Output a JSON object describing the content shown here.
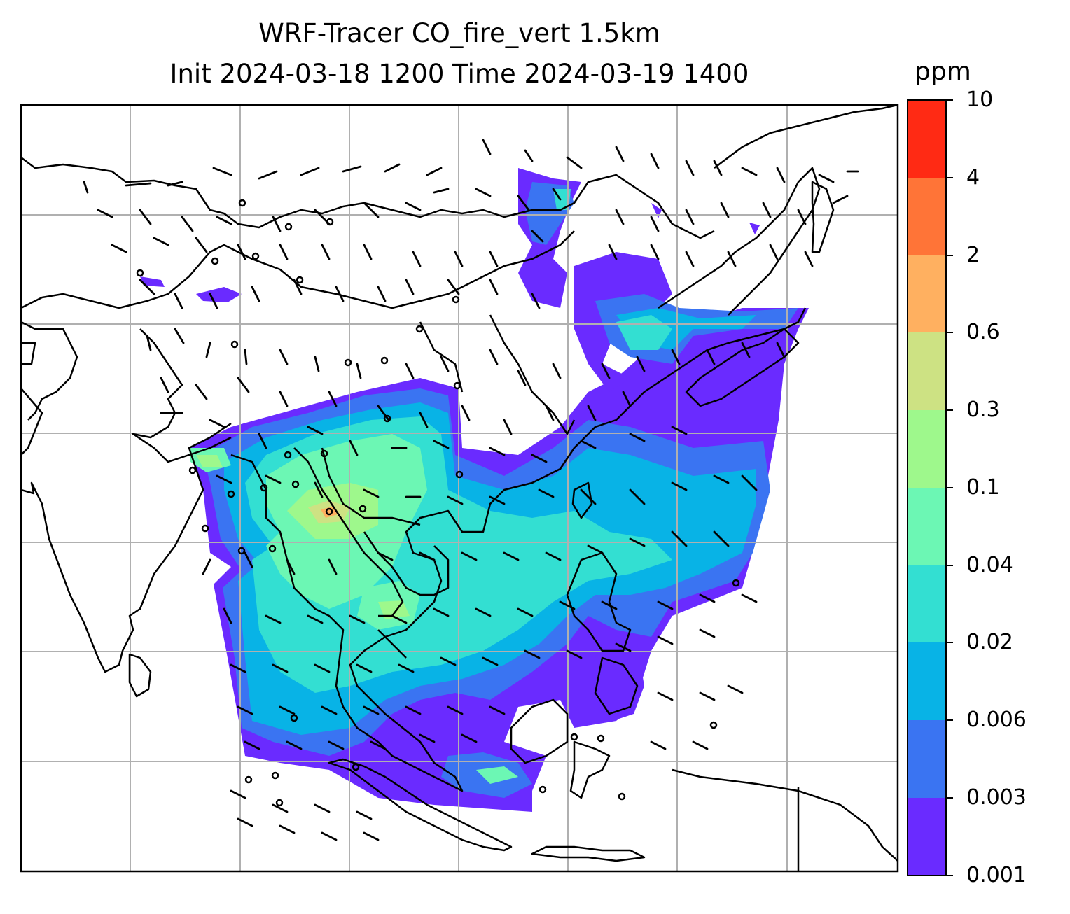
{
  "title": {
    "line1": "WRF-Tracer CO_fire_vert 1.5km",
    "line2": "Init 2024-03-18 1200 Time 2024-03-19 1400"
  },
  "colorbar": {
    "unit": "ppm",
    "tick_labels": [
      "0.001",
      "0.003",
      "0.006",
      "0.02",
      "0.04",
      "0.1",
      "0.3",
      "0.6",
      "2",
      "4",
      "10"
    ],
    "colors": [
      "#6a2bff",
      "#3a74f2",
      "#08b3e6",
      "#33dfd2",
      "#6cf7b4",
      "#9ef88c",
      "#cde283",
      "#ffb060",
      "#ff7437",
      "#ff2a14"
    ]
  },
  "map": {
    "gridlines": true,
    "coastline_color": "#000000",
    "grid_color": "#b0b0b0"
  }
}
